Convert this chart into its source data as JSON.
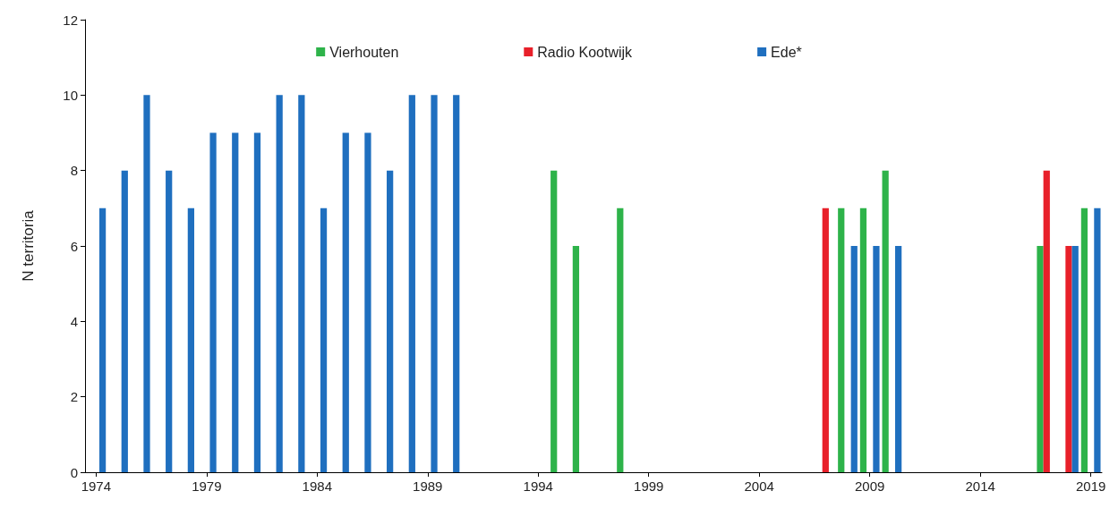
{
  "chart_data": {
    "type": "bar",
    "ylabel": "N territoria",
    "categories": [
      "1974",
      null,
      null,
      null,
      null,
      "1979",
      null,
      null,
      null,
      null,
      "1984",
      null,
      null,
      null,
      null,
      "1989",
      null,
      null,
      null,
      null,
      "1994",
      null,
      null,
      null,
      null,
      "1999",
      null,
      null,
      null,
      null,
      "2004",
      null,
      null,
      null,
      null,
      "2009",
      null,
      null,
      null,
      null,
      "2014",
      null,
      null,
      null,
      null,
      "2019"
    ],
    "series": [
      {
        "name": "Vierhouten",
        "color": "#2eb34a",
        "values": [
          null,
          null,
          null,
          null,
          null,
          null,
          null,
          null,
          null,
          null,
          null,
          null,
          null,
          null,
          null,
          null,
          null,
          null,
          null,
          null,
          null,
          8,
          6,
          null,
          7,
          null,
          null,
          null,
          null,
          null,
          null,
          null,
          null,
          null,
          7,
          7,
          8,
          null,
          null,
          null,
          null,
          null,
          null,
          6,
          null,
          7
        ]
      },
      {
        "name": "Radio Kootwijk",
        "color": "#e8202a",
        "values": [
          null,
          null,
          null,
          null,
          null,
          null,
          null,
          null,
          null,
          null,
          null,
          null,
          null,
          null,
          null,
          null,
          null,
          null,
          null,
          null,
          null,
          null,
          null,
          null,
          null,
          null,
          null,
          null,
          null,
          null,
          null,
          null,
          null,
          7,
          null,
          null,
          null,
          null,
          null,
          null,
          null,
          null,
          null,
          8,
          6,
          null
        ]
      },
      {
        "name": "Ede*",
        "color": "#1f6fbf",
        "values": [
          7,
          8,
          10,
          8,
          7,
          9,
          9,
          9,
          10,
          10,
          7,
          9,
          9,
          8,
          10,
          10,
          10,
          null,
          null,
          null,
          null,
          null,
          null,
          null,
          null,
          null,
          null,
          null,
          null,
          null,
          null,
          null,
          null,
          null,
          6,
          6,
          6,
          null,
          null,
          null,
          null,
          null,
          null,
          null,
          6,
          7
        ]
      }
    ],
    "ylim": [
      0,
      12
    ],
    "yticks": [
      0,
      2,
      4,
      6,
      8,
      10,
      12
    ],
    "grid": false,
    "legend": "top"
  }
}
